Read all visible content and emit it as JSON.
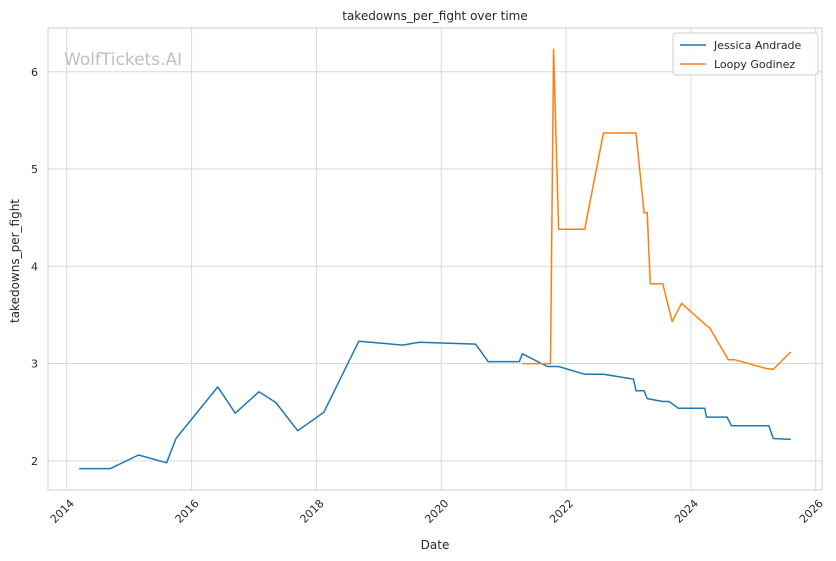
{
  "watermark": "WolfTickets.AI",
  "chart_data": {
    "type": "line",
    "title": "takedowns_per_fight over time",
    "xlabel": "Date",
    "ylabel": "takedowns_per_fight",
    "x_type": "year",
    "xlim": [
      2013.7,
      2026.1
    ],
    "ylim": [
      1.7,
      6.45
    ],
    "x_ticks": [
      2014,
      2016,
      2018,
      2020,
      2022,
      2024,
      2026
    ],
    "y_ticks": [
      2,
      3,
      4,
      5,
      6
    ],
    "grid": true,
    "legend_position": "top-right",
    "series": [
      {
        "name": "Jessica Andrade",
        "color": "#1f77b4",
        "points": [
          [
            2014.2,
            1.92
          ],
          [
            2014.7,
            1.92
          ],
          [
            2015.15,
            2.06
          ],
          [
            2015.6,
            1.98
          ],
          [
            2015.75,
            2.23
          ],
          [
            2016.42,
            2.76
          ],
          [
            2016.7,
            2.49
          ],
          [
            2017.08,
            2.71
          ],
          [
            2017.35,
            2.6
          ],
          [
            2017.7,
            2.31
          ],
          [
            2018.12,
            2.5
          ],
          [
            2018.68,
            3.23
          ],
          [
            2019.38,
            3.19
          ],
          [
            2019.65,
            3.22
          ],
          [
            2020.55,
            3.2
          ],
          [
            2020.75,
            3.02
          ],
          [
            2021.25,
            3.02
          ],
          [
            2021.3,
            3.1
          ],
          [
            2021.7,
            2.97
          ],
          [
            2021.88,
            2.97
          ],
          [
            2022.3,
            2.89
          ],
          [
            2022.6,
            2.89
          ],
          [
            2023.08,
            2.84
          ],
          [
            2023.12,
            2.72
          ],
          [
            2023.25,
            2.72
          ],
          [
            2023.3,
            2.64
          ],
          [
            2023.55,
            2.61
          ],
          [
            2023.65,
            2.61
          ],
          [
            2023.8,
            2.54
          ],
          [
            2024.22,
            2.54
          ],
          [
            2024.25,
            2.45
          ],
          [
            2024.58,
            2.45
          ],
          [
            2024.65,
            2.36
          ],
          [
            2025.25,
            2.36
          ],
          [
            2025.32,
            2.23
          ],
          [
            2025.6,
            2.22
          ]
        ]
      },
      {
        "name": "Loopy Godinez",
        "color": "#ff7f0e",
        "points": [
          [
            2021.3,
            3.0
          ],
          [
            2021.75,
            3.0
          ],
          [
            2021.8,
            6.23
          ],
          [
            2021.88,
            4.38
          ],
          [
            2022.3,
            4.38
          ],
          [
            2022.35,
            4.55
          ],
          [
            2022.6,
            5.37
          ],
          [
            2023.12,
            5.37
          ],
          [
            2023.25,
            4.55
          ],
          [
            2023.3,
            4.55
          ],
          [
            2023.35,
            3.82
          ],
          [
            2023.55,
            3.82
          ],
          [
            2023.7,
            3.43
          ],
          [
            2023.85,
            3.62
          ],
          [
            2024.25,
            3.39
          ],
          [
            2024.3,
            3.37
          ],
          [
            2024.6,
            3.04
          ],
          [
            2024.7,
            3.04
          ],
          [
            2025.2,
            2.95
          ],
          [
            2025.32,
            2.94
          ],
          [
            2025.6,
            3.12
          ]
        ]
      }
    ]
  }
}
